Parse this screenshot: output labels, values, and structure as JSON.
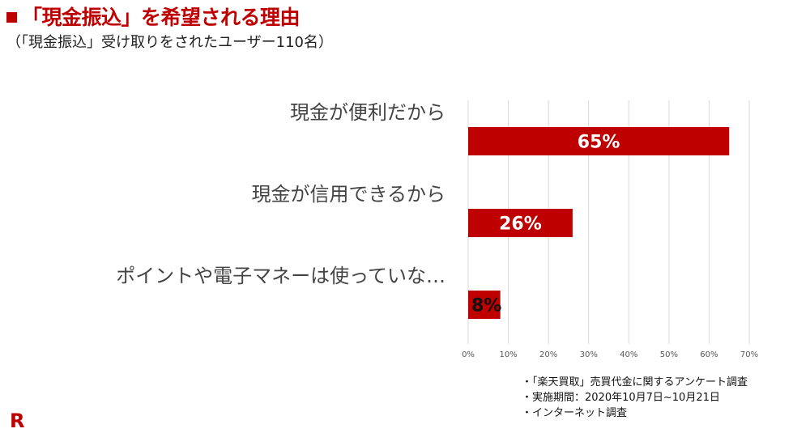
{
  "header": {
    "title": "「現金振込」を希望される理由",
    "subtitle": "（「現金振込」受け取りをされたユーザー110名）"
  },
  "chart_data": {
    "type": "bar",
    "orientation": "horizontal",
    "categories": [
      "現金が便利だから",
      "現金が信用できるから",
      "ポイントや電子マネーは使っていな…"
    ],
    "values": [
      65,
      26,
      8
    ],
    "value_labels": [
      "65%",
      "26%",
      "8%"
    ],
    "x_ticks": [
      "0%",
      "10%",
      "20%",
      "30%",
      "40%",
      "50%",
      "60%",
      "70%"
    ],
    "xlim": [
      0,
      70
    ],
    "grid": true,
    "bar_color": "#bf0000"
  },
  "notes": [
    "・「楽天買取」売買代金に関するアンケート調査",
    "・実施期間：2020年10月7日~10月21日",
    "・インターネット調査"
  ],
  "logo": {
    "text": "R",
    "color": "#bf0000"
  }
}
